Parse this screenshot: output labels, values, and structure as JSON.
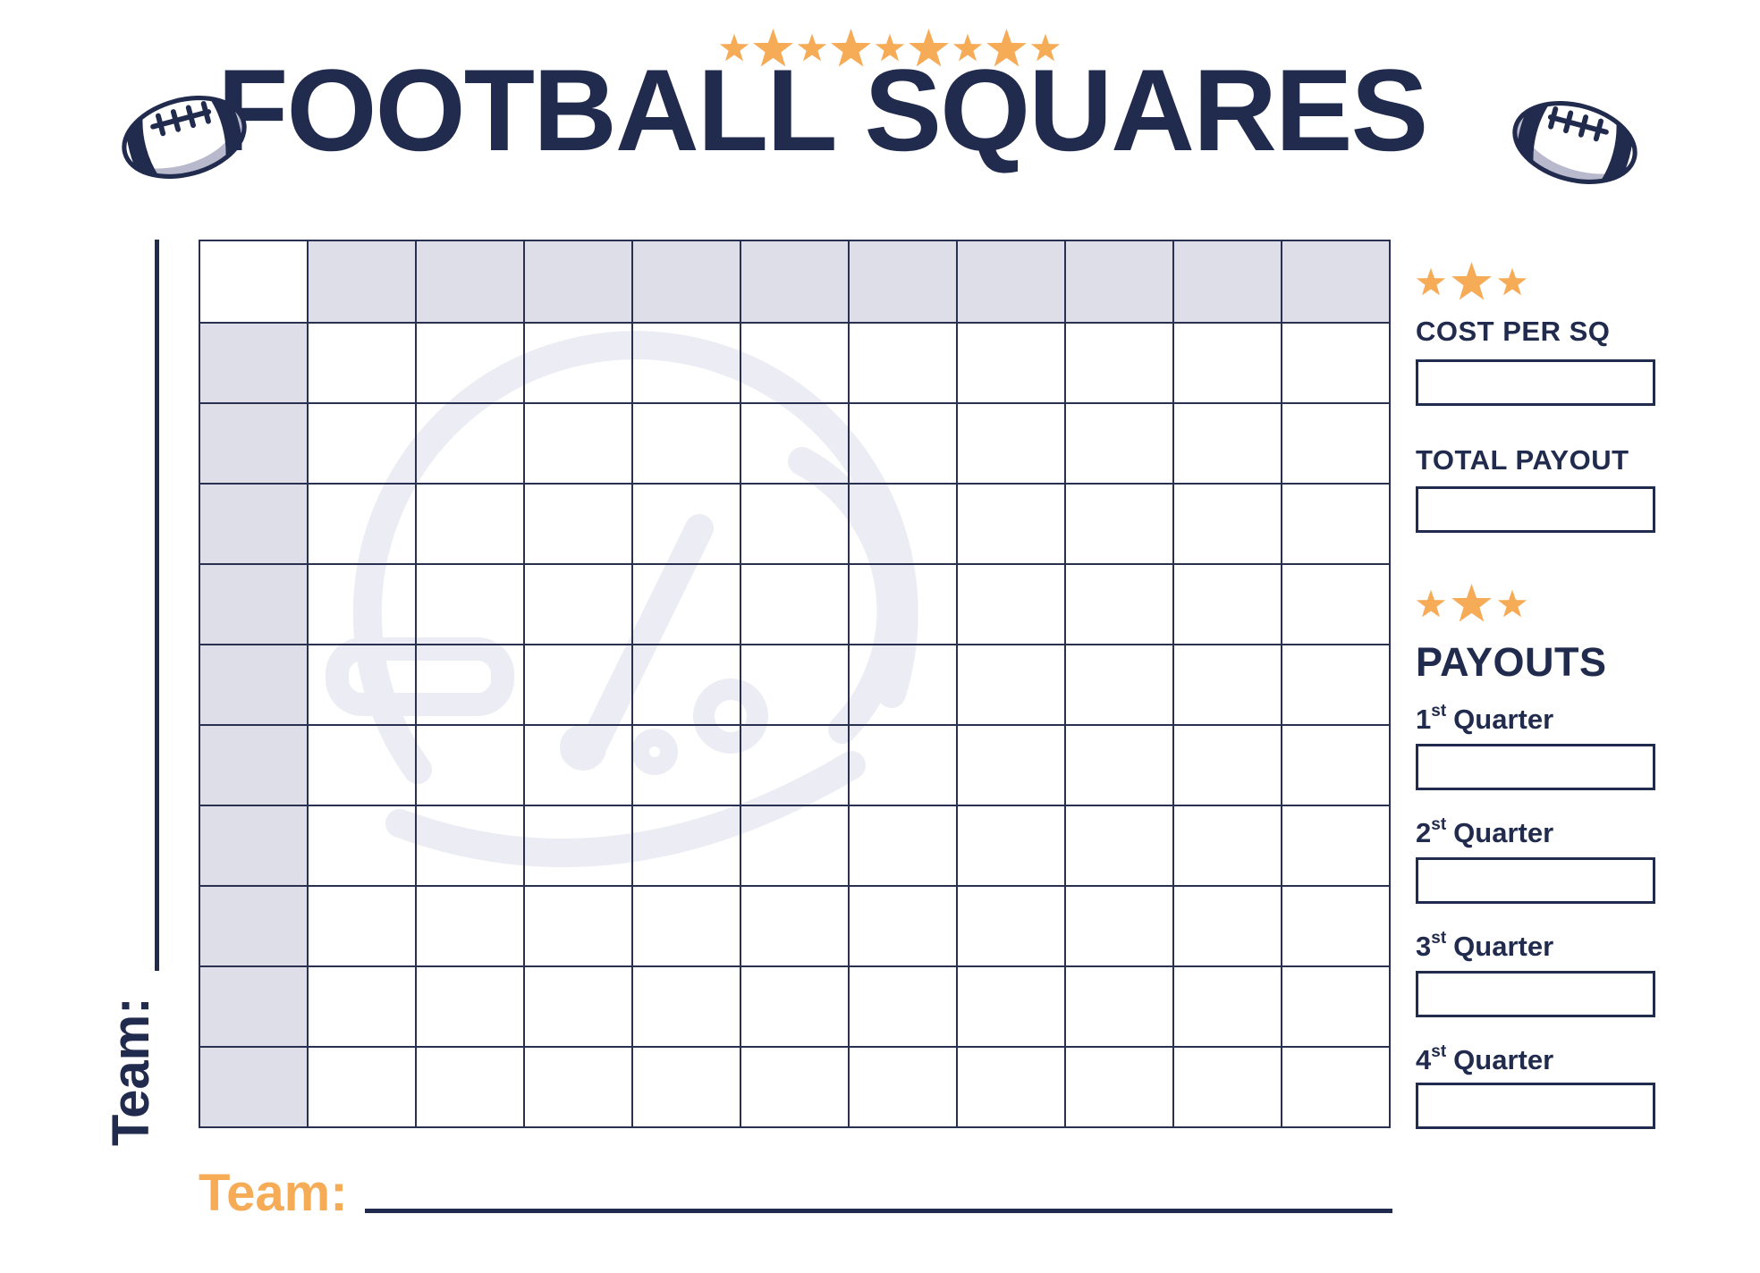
{
  "title": "FOOTBALL SQUARES",
  "header": {
    "stars_pattern": [
      "small",
      "large",
      "small",
      "large",
      "small",
      "large",
      "small",
      "large",
      "small"
    ]
  },
  "grid": {
    "rows": 11,
    "cols": 11,
    "playable_rows": 10,
    "playable_cols": 10,
    "header_row_shaded": true,
    "header_col_shaded": true,
    "cell_values": []
  },
  "team_labels": {
    "left_vertical": "Team:",
    "bottom": "Team:",
    "left_value": "",
    "bottom_value": ""
  },
  "side_panel": {
    "cost_stars_pattern": [
      "small",
      "large",
      "small"
    ],
    "cost_label": "COST PER SQ",
    "cost_value": "",
    "total_label": "TOTAL PAYOUT",
    "total_value": "",
    "payouts_stars_pattern": [
      "small",
      "large",
      "small"
    ],
    "payouts_heading": "PAYOUTS",
    "quarters": [
      {
        "number": "1",
        "ordinal": "st",
        "word": "Quarter",
        "value": ""
      },
      {
        "number": "2",
        "ordinal": "st",
        "word": "Quarter",
        "value": ""
      },
      {
        "number": "3",
        "ordinal": "st",
        "word": "Quarter",
        "value": ""
      },
      {
        "number": "4",
        "ordinal": "st",
        "word": "Quarter",
        "value": ""
      }
    ]
  },
  "icons": {
    "header_left": "football-icon",
    "header_right": "football-icon",
    "grid_background": "helmet-watermark-icon",
    "star": "star-icon"
  },
  "colors": {
    "navy": "#212B4D",
    "grid_line": "#2A3150",
    "orange": "#F6AC57",
    "shade": "#DEDEE9",
    "watermark": "#ECEDF4",
    "ball_shadow": "#B8B9CC"
  }
}
